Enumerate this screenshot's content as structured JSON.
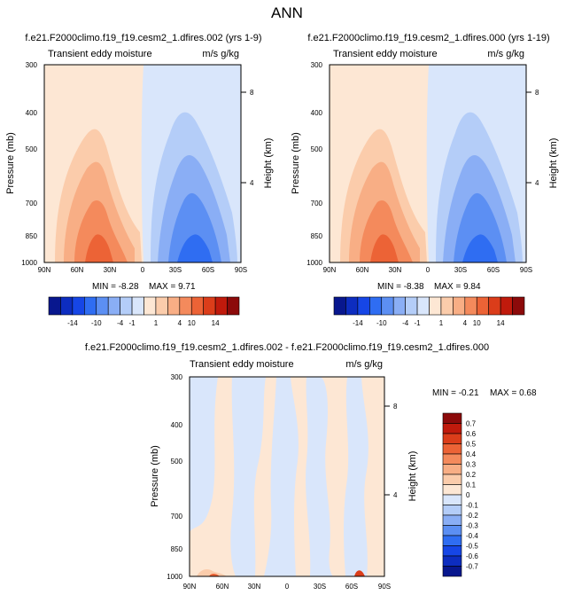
{
  "page_title": "ANN",
  "colorbar_bottom": {
    "labels": [
      "-14",
      "-10",
      "-4",
      "-1",
      "1",
      "4",
      "10",
      "14"
    ],
    "colors": [
      "#08178e",
      "#0d2dc0",
      "#1646e6",
      "#2f6df2",
      "#5c8ff3",
      "#8aaef5",
      "#b4cdf8",
      "#d9e6fb",
      "#fde7d4",
      "#fbccab",
      "#f8ae85",
      "#f48a5c",
      "#ec6336",
      "#db3d1a",
      "#c01a0c",
      "#8c0a0a"
    ]
  },
  "colorbar_diff": {
    "labels": [
      "0.7",
      "0.6",
      "0.5",
      "0.4",
      "0.3",
      "0.2",
      "0.1",
      "0",
      "-0.1",
      "-0.2",
      "-0.3",
      "-0.4",
      "-0.5",
      "-0.6",
      "-0.7"
    ],
    "colors": [
      "#8c0a0a",
      "#c01a0c",
      "#db3d1a",
      "#ec6336",
      "#f48a5c",
      "#f8ae85",
      "#fbccab",
      "#fde7d4",
      "#d9e6fb",
      "#b4cdf8",
      "#8aaef5",
      "#5c8ff3",
      "#2f6df2",
      "#1646e6",
      "#0d2dc0",
      "#08178e"
    ]
  },
  "chart_data": [
    {
      "type": "heatmap",
      "title": "f.e21.F2000climo.f19_f19.cesm2_1.dfires.002 (yrs 1-9)",
      "subtitle_left": "Transient eddy moisture",
      "subtitle_right": "m/s g/kg",
      "ylabel": "Pressure (mb)",
      "ylabel_right": "Height (km)",
      "x_ticks": [
        "90N",
        "60N",
        "30N",
        "0",
        "30S",
        "60S",
        "90S"
      ],
      "y_ticks": [
        "300",
        "400",
        "500",
        "700",
        "850",
        "1000"
      ],
      "y_right_ticks": [
        "8",
        "4"
      ],
      "min_label": "MIN = -8.28",
      "max_label": "MAX = 9.71",
      "min": -8.28,
      "max": 9.71
    },
    {
      "type": "heatmap",
      "title": "f.e21.F2000climo.f19_f19.cesm2_1.dfires.000 (yrs 1-19)",
      "subtitle_left": "Transient eddy moisture",
      "subtitle_right": "m/s g/kg",
      "ylabel": "Pressure (mb)",
      "ylabel_right": "Height (km)",
      "x_ticks": [
        "90N",
        "60N",
        "30N",
        "0",
        "30S",
        "60S",
        "90S"
      ],
      "y_ticks": [
        "300",
        "400",
        "500",
        "700",
        "850",
        "1000"
      ],
      "y_right_ticks": [
        "8",
        "4"
      ],
      "min_label": "MIN = -8.38",
      "max_label": "MAX = 9.84",
      "min": -8.38,
      "max": 9.84
    },
    {
      "type": "heatmap",
      "title": "f.e21.F2000climo.f19_f19.cesm2_1.dfires.002 - f.e21.F2000climo.f19_f19.cesm2_1.dfires.000",
      "subtitle_left": "Transient eddy moisture",
      "subtitle_right": "m/s g/kg",
      "ylabel": "Pressure (mb)",
      "ylabel_right": "Height (km)",
      "x_ticks": [
        "90N",
        "60N",
        "30N",
        "0",
        "30S",
        "60S",
        "90S"
      ],
      "y_ticks": [
        "300",
        "400",
        "500",
        "700",
        "850",
        "1000"
      ],
      "y_right_ticks": [
        "8",
        "4"
      ],
      "min_label": "MIN = -0.21",
      "max_label": "MAX = 0.68",
      "min": -0.21,
      "max": 0.68
    }
  ]
}
